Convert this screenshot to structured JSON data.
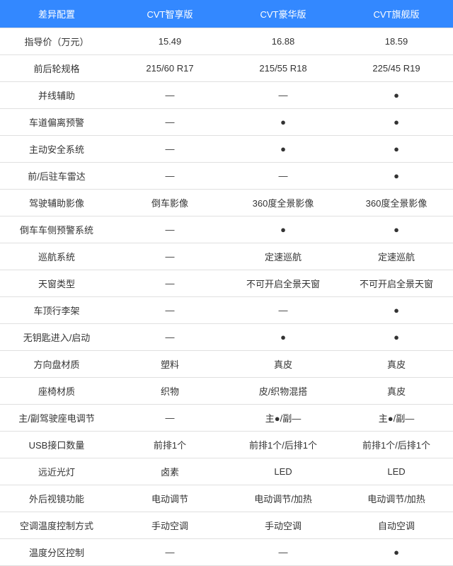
{
  "header_bg": "#3388ff",
  "header_color": "#ffffff",
  "border_color": "#e0e0e0",
  "text_color": "#333333",
  "columns": [
    "差异配置",
    "CVT智享版",
    "CVT豪华版",
    "CVT旗舰版"
  ],
  "rows": [
    {
      "label": "指导价（万元）",
      "c1": "15.49",
      "c2": "16.88",
      "c3": "18.59"
    },
    {
      "label": "前后轮规格",
      "c1": "215/60 R17",
      "c2": "215/55 R18",
      "c3": "225/45 R19"
    },
    {
      "label": "并线辅助",
      "c1": "—",
      "c2": "—",
      "c3": "●"
    },
    {
      "label": "车道偏离预警",
      "c1": "—",
      "c2": "●",
      "c3": "●"
    },
    {
      "label": "主动安全系统",
      "c1": "—",
      "c2": "●",
      "c3": "●"
    },
    {
      "label": "前/后驻车雷达",
      "c1": "—",
      "c2": "—",
      "c3": "●"
    },
    {
      "label": "驾驶辅助影像",
      "c1": "倒车影像",
      "c2": "360度全景影像",
      "c3": "360度全景影像"
    },
    {
      "label": "倒车车侧预警系统",
      "c1": "—",
      "c2": "●",
      "c3": "●"
    },
    {
      "label": "巡航系统",
      "c1": "—",
      "c2": "定速巡航",
      "c3": "定速巡航"
    },
    {
      "label": "天窗类型",
      "c1": "—",
      "c2": "不可开启全景天窗",
      "c3": "不可开启全景天窗"
    },
    {
      "label": "车顶行李架",
      "c1": "—",
      "c2": "—",
      "c3": "●"
    },
    {
      "label": "无钥匙进入/启动",
      "c1": "—",
      "c2": "●",
      "c3": "●"
    },
    {
      "label": "方向盘材质",
      "c1": "塑料",
      "c2": "真皮",
      "c3": "真皮"
    },
    {
      "label": "座椅材质",
      "c1": "织物",
      "c2": "皮/织物混搭",
      "c3": "真皮"
    },
    {
      "label": "主/副驾驶座电调节",
      "c1": "—",
      "c2": "主●/副—",
      "c3": "主●/副—"
    },
    {
      "label": "USB接口数量",
      "c1": "前排1个",
      "c2": "前排1个/后排1个",
      "c3": "前排1个/后排1个"
    },
    {
      "label": "远近光灯",
      "c1": "卤素",
      "c2": "LED",
      "c3": "LED"
    },
    {
      "label": "外后视镜功能",
      "c1": "电动调节",
      "c2": "电动调节/加热",
      "c3": "电动调节/加热"
    },
    {
      "label": "空调温度控制方式",
      "c1": "手动空调",
      "c2": "手动空调",
      "c3": "自动空调"
    },
    {
      "label": "温度分区控制",
      "c1": "—",
      "c2": "—",
      "c3": "●"
    }
  ]
}
